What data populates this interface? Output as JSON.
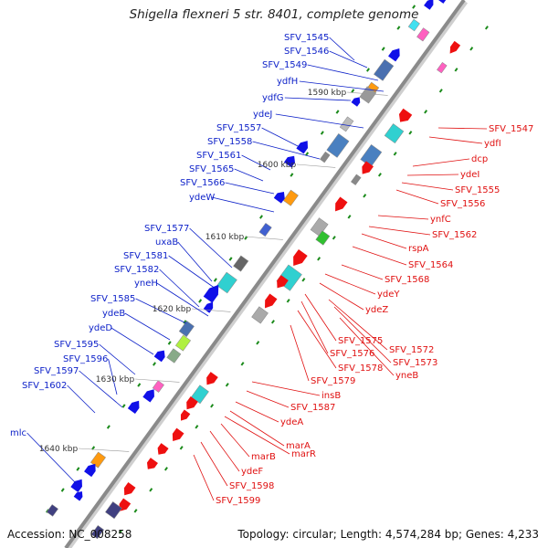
{
  "title": "Shigella flexneri 5 str. 8401, complete genome",
  "accession": "Accession: NC_008258",
  "summary": "Topology: circular; Length: 4,574,284 bp; Genes: 4,233",
  "scale_labels": [
    "1590 kbp",
    "1600 kbp",
    "1610 kbp",
    "1620 kbp",
    "1630 kbp",
    "1640 kbp"
  ],
  "left_labels": [
    "SFV_1545",
    "SFV_1546",
    "SFV_1549",
    "ydfH",
    "ydfG",
    "ydeJ",
    "SFV_1557",
    "SFV_1558",
    "SFV_1561",
    "SFV_1565",
    "SFV_1566",
    "ydeW",
    "SFV_1577",
    "uxaB",
    "SFV_1581",
    "SFV_1582",
    "yneH",
    "SFV_1585",
    "ydeB",
    "ydeD",
    "SFV_1595",
    "SFV_1596",
    "SFV_1597",
    "SFV_1602",
    "mlc"
  ],
  "right_labels": [
    "SFV_1547",
    "ydfI",
    "dcp",
    "ydeI",
    "SFV_1555",
    "SFV_1556",
    "ynfC",
    "SFV_1562",
    "rspA",
    "SFV_1564",
    "SFV_1568",
    "ydeY",
    "ydeZ",
    "SFV_1575",
    "SFV_1572",
    "SFV_1576",
    "SFV_1573",
    "SFV_1578",
    "yneB",
    "SFV_1579",
    "insB",
    "SFV_1587",
    "ydeA",
    "marA",
    "marR",
    "marB",
    "ydeF",
    "SFV_1598",
    "SFV_1599"
  ],
  "colors": {
    "backbone": "#8a8a8a",
    "forward_label": "#0b1fc8",
    "reverse_label": "#e01010",
    "forward_gene": "#1010e8",
    "reverse_gene": "#ee1010",
    "marker": "#1a8a1a"
  }
}
